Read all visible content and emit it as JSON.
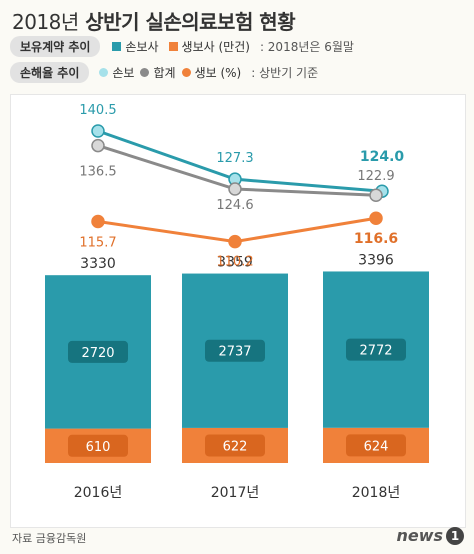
{
  "header": {
    "title_year": "2018년",
    "title_main": "상반기 실손의료보험 현황"
  },
  "legend1": {
    "label": "보유계약 추이",
    "items": [
      {
        "name": "손보사",
        "color": "#2a9bab"
      },
      {
        "name": "생보사 (만건)",
        "color": "#f0813a"
      }
    ],
    "note": ": 2018년은 6월말"
  },
  "legend2": {
    "label": "손해율 추이",
    "items": [
      {
        "name": "손보",
        "color": "#a6e1ea"
      },
      {
        "name": "합계",
        "color": "#9a9a9a"
      },
      {
        "name": "생보 (%)",
        "color": "#f0813a"
      }
    ],
    "note": ": 상반기 기준"
  },
  "footer": {
    "source": "자료 금융감독원",
    "logo_text": "news",
    "logo_badge": "1"
  },
  "chart_data": [
    {
      "type": "bar",
      "categories": [
        "2016년",
        "2017년",
        "2018년"
      ],
      "series": [
        {
          "name": "손보사",
          "values": [
            2720,
            2737,
            2772
          ]
        },
        {
          "name": "생보사",
          "values": [
            610,
            622,
            624
          ]
        }
      ],
      "totals": [
        3330,
        3359,
        3396
      ],
      "colors": {
        "손보사": "#2a9bab",
        "생보사": "#f0813a"
      },
      "stacked": true,
      "unit": "만건"
    },
    {
      "type": "line",
      "categories": [
        "2016년",
        "2017년",
        "2018년"
      ],
      "series": [
        {
          "name": "손보",
          "values": [
            140.5,
            127.3,
            124.0
          ],
          "labels": [
            "140.5",
            "127.3",
            "124.0"
          ]
        },
        {
          "name": "합계",
          "values": [
            136.5,
            124.6,
            122.9
          ],
          "labels": [
            "136.5",
            "124.6",
            "122.9"
          ]
        },
        {
          "name": "생보",
          "values": [
            115.7,
            110.2,
            116.6
          ],
          "labels": [
            "115.7",
            "110.2",
            "116.6"
          ]
        }
      ],
      "colors": {
        "손보": "#2a9bab",
        "합계": "#8a8a8a",
        "생보": "#f0813a"
      },
      "unit": "%"
    }
  ]
}
